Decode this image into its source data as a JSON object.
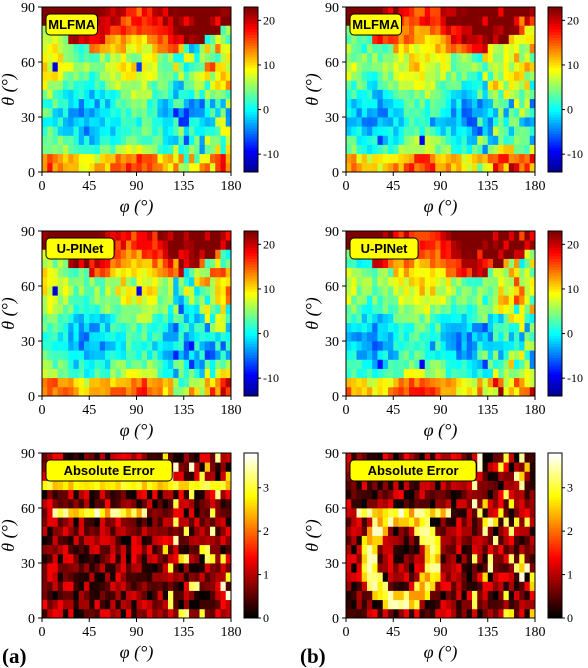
{
  "chart_data": [
    {
      "type": "heatmap",
      "panel": "a",
      "row": 1,
      "label": "MLFMA",
      "cmap": "jet",
      "xlabel": "φ (°)",
      "ylabel": "θ (°)",
      "xticks": [
        "0",
        "45",
        "90",
        "135",
        "180"
      ],
      "yticks": [
        "0",
        "30",
        "60",
        "90"
      ],
      "xlim": [
        0,
        180
      ],
      "ylim": [
        0,
        90
      ],
      "colorbar": {
        "ticks": [
          "-10",
          "0",
          "10",
          "20"
        ],
        "min": -14,
        "max": 23
      }
    },
    {
      "type": "heatmap",
      "panel": "b",
      "row": 1,
      "label": "MLFMA",
      "cmap": "jet",
      "xlabel": "φ (°)",
      "ylabel": "θ (°)",
      "xticks": [
        "0",
        "45",
        "90",
        "135",
        "180"
      ],
      "yticks": [
        "0",
        "30",
        "60",
        "90"
      ],
      "xlim": [
        0,
        180
      ],
      "ylim": [
        0,
        90
      ],
      "colorbar": {
        "ticks": [
          "-10",
          "0",
          "10",
          "20"
        ],
        "min": -14,
        "max": 23
      }
    },
    {
      "type": "heatmap",
      "panel": "a",
      "row": 2,
      "label": "U-PINet",
      "cmap": "jet",
      "xlabel": "φ (°)",
      "ylabel": "θ (°)",
      "xticks": [
        "0",
        "45",
        "90",
        "135",
        "180"
      ],
      "yticks": [
        "0",
        "30",
        "60",
        "90"
      ],
      "xlim": [
        0,
        180
      ],
      "ylim": [
        0,
        90
      ],
      "colorbar": {
        "ticks": [
          "-10",
          "0",
          "10",
          "20"
        ],
        "min": -14,
        "max": 23
      }
    },
    {
      "type": "heatmap",
      "panel": "b",
      "row": 2,
      "label": "U-PINet",
      "cmap": "jet",
      "xlabel": "φ (°)",
      "ylabel": "θ (°)",
      "xticks": [
        "0",
        "45",
        "90",
        "135",
        "180"
      ],
      "yticks": [
        "0",
        "30",
        "60",
        "90"
      ],
      "xlim": [
        0,
        180
      ],
      "ylim": [
        0,
        90
      ],
      "colorbar": {
        "ticks": [
          "-10",
          "0",
          "10",
          "20"
        ],
        "min": -14,
        "max": 23
      }
    },
    {
      "type": "heatmap",
      "panel": "a",
      "row": 3,
      "label": "Absolute Error",
      "cmap": "hot",
      "xlabel": "φ (°)",
      "ylabel": "θ (°)",
      "xticks": [
        "0",
        "45",
        "90",
        "135",
        "180"
      ],
      "yticks": [
        "0",
        "30",
        "60",
        "90"
      ],
      "xlim": [
        0,
        180
      ],
      "ylim": [
        0,
        90
      ],
      "colorbar": {
        "ticks": [
          "0",
          "1",
          "2",
          "3"
        ],
        "min": 0,
        "max": 3.8
      }
    },
    {
      "type": "heatmap",
      "panel": "b",
      "row": 3,
      "label": "Absolute Error",
      "cmap": "hot",
      "xlabel": "φ (°)",
      "ylabel": "θ (°)",
      "xticks": [
        "0",
        "45",
        "90",
        "135",
        "180"
      ],
      "yticks": [
        "0",
        "30",
        "60",
        "90"
      ],
      "xlim": [
        0,
        180
      ],
      "ylim": [
        0,
        90
      ],
      "colorbar": {
        "ticks": [
          "0",
          "1",
          "2",
          "3"
        ],
        "min": 0,
        "max": 3.8
      }
    }
  ],
  "panel_labels": [
    "(a)",
    "(b)"
  ]
}
